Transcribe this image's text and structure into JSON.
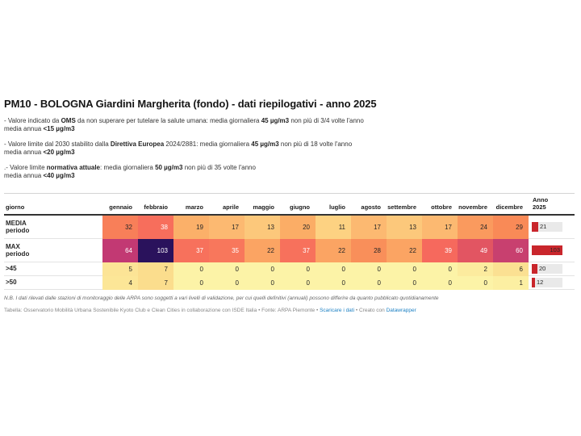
{
  "title": "PM10 - BOLOGNA Giardini Margherita (fondo) - dati riepilogativi - anno 2025",
  "notes": [
    {
      "p1": "- Valore indicato da ",
      "b1": "OMS",
      "p2": " da non superare per tutelare la salute umana: media giornaliera ",
      "b2": "45 µg/m3",
      "p3": " non più di 3/4 volte l'anno",
      "l2p": "media annua ",
      "l2b": "<15 µg/m3"
    },
    {
      "p1": "- Valore limite dal 2030 stabilito dalla ",
      "b1": "Direttiva Europea",
      "p2": " 2024/2881: media giornaliera ",
      "b2": "45 µg/m3",
      "p3": " non più di 18 volte l'anno",
      "l2p": "media annua ",
      "l2b": "<20 µg/m3"
    },
    {
      "p1": ".- Valore limite ",
      "b1": "normativa attuale",
      "p2": ": media giornaliera ",
      "b2": "50 µg/m3",
      "p3": " non più di 35 volte l'anno",
      "l2p": "media annua ",
      "l2b": "<40 µg/m3"
    }
  ],
  "chart_data": {
    "type": "heatmap",
    "title": "PM10 - BOLOGNA Giardini Margherita (fondo) - dati riepilogativi - anno 2025",
    "categories": [
      "gennaio",
      "febbraio",
      "marzo",
      "aprile",
      "maggio",
      "giugno",
      "luglio",
      "agosto",
      "settembre",
      "ottobre",
      "novembre",
      "dicembre"
    ],
    "series": [
      {
        "name": "MEDIA periodo",
        "values": [
          32,
          38,
          19,
          17,
          13,
          20,
          11,
          17,
          13,
          17,
          24,
          29
        ],
        "anno_2025": 21
      },
      {
        "name": "MAX periodo",
        "values": [
          64,
          103,
          37,
          35,
          22,
          37,
          22,
          28,
          22,
          39,
          49,
          60
        ],
        "anno_2025": 103
      },
      {
        "name": ">45",
        "values": [
          5,
          7,
          0,
          0,
          0,
          0,
          0,
          0,
          0,
          0,
          2,
          6
        ],
        "anno_2025": 20
      },
      {
        "name": ">50",
        "values": [
          4,
          7,
          0,
          0,
          0,
          0,
          0,
          0,
          0,
          0,
          0,
          1
        ],
        "anno_2025": 12
      }
    ]
  },
  "table": {
    "first_col_header": "giorno",
    "anno_header_line1": "Anno",
    "anno_header_line2": "2025",
    "row_label_lines": [
      [
        "MEDIA",
        "periodo"
      ],
      [
        "MAX",
        "periodo"
      ],
      [
        ">45"
      ],
      [
        ">50"
      ]
    ],
    "anno_max": 103,
    "light_text_min": 35,
    "color_scale": {
      "0": "#fcf3a7",
      "1": "#fcefa2",
      "2": "#fceb9e",
      "4": "#fce697",
      "5": "#fce496",
      "6": "#fbe092",
      "7": "#fbdd8d",
      "11": "#fdd282",
      "13": "#fcc87b",
      "17": "#fcb971",
      "19": "#fbb069",
      "20": "#fbad66",
      "22": "#fba463",
      "24": "#fa9a5e",
      "28": "#f98f5a",
      "29": "#f98a57",
      "32": "#f87f59",
      "35": "#f8775c",
      "37": "#f7715c",
      "38": "#f76e5c",
      "39": "#f6695d",
      "49": "#e25562",
      "60": "#c8406f",
      "64": "#c23973",
      "103": "#2a125c"
    },
    "colors": {
      "anno_box_bg": "#e9e9e9",
      "anno_bar_red": "#c9262c",
      "dark_text": "#262626",
      "light_text": "#ffffff"
    }
  },
  "footnote": "N.B. I dati rilevati dalle stazioni di monitoraggio delle ARPA sono soggetti a vari livelli di validazione, per cui quelli definitivi (annuali) possono differire da quanto pubblicato quotidianamente",
  "footer": {
    "text1": "Tabella: Osservatorio Mobilità Urbana Sostenibile Kyoto Club e Clean Cities in collaborazione con ISDE Italia",
    "sep": "•",
    "text2": "Fonte: ARPA Piemonte",
    "link1": "Scaricare i dati",
    "text3": "Creato con ",
    "link2": "Datawrapper",
    "link_color": "#1d81c4"
  }
}
